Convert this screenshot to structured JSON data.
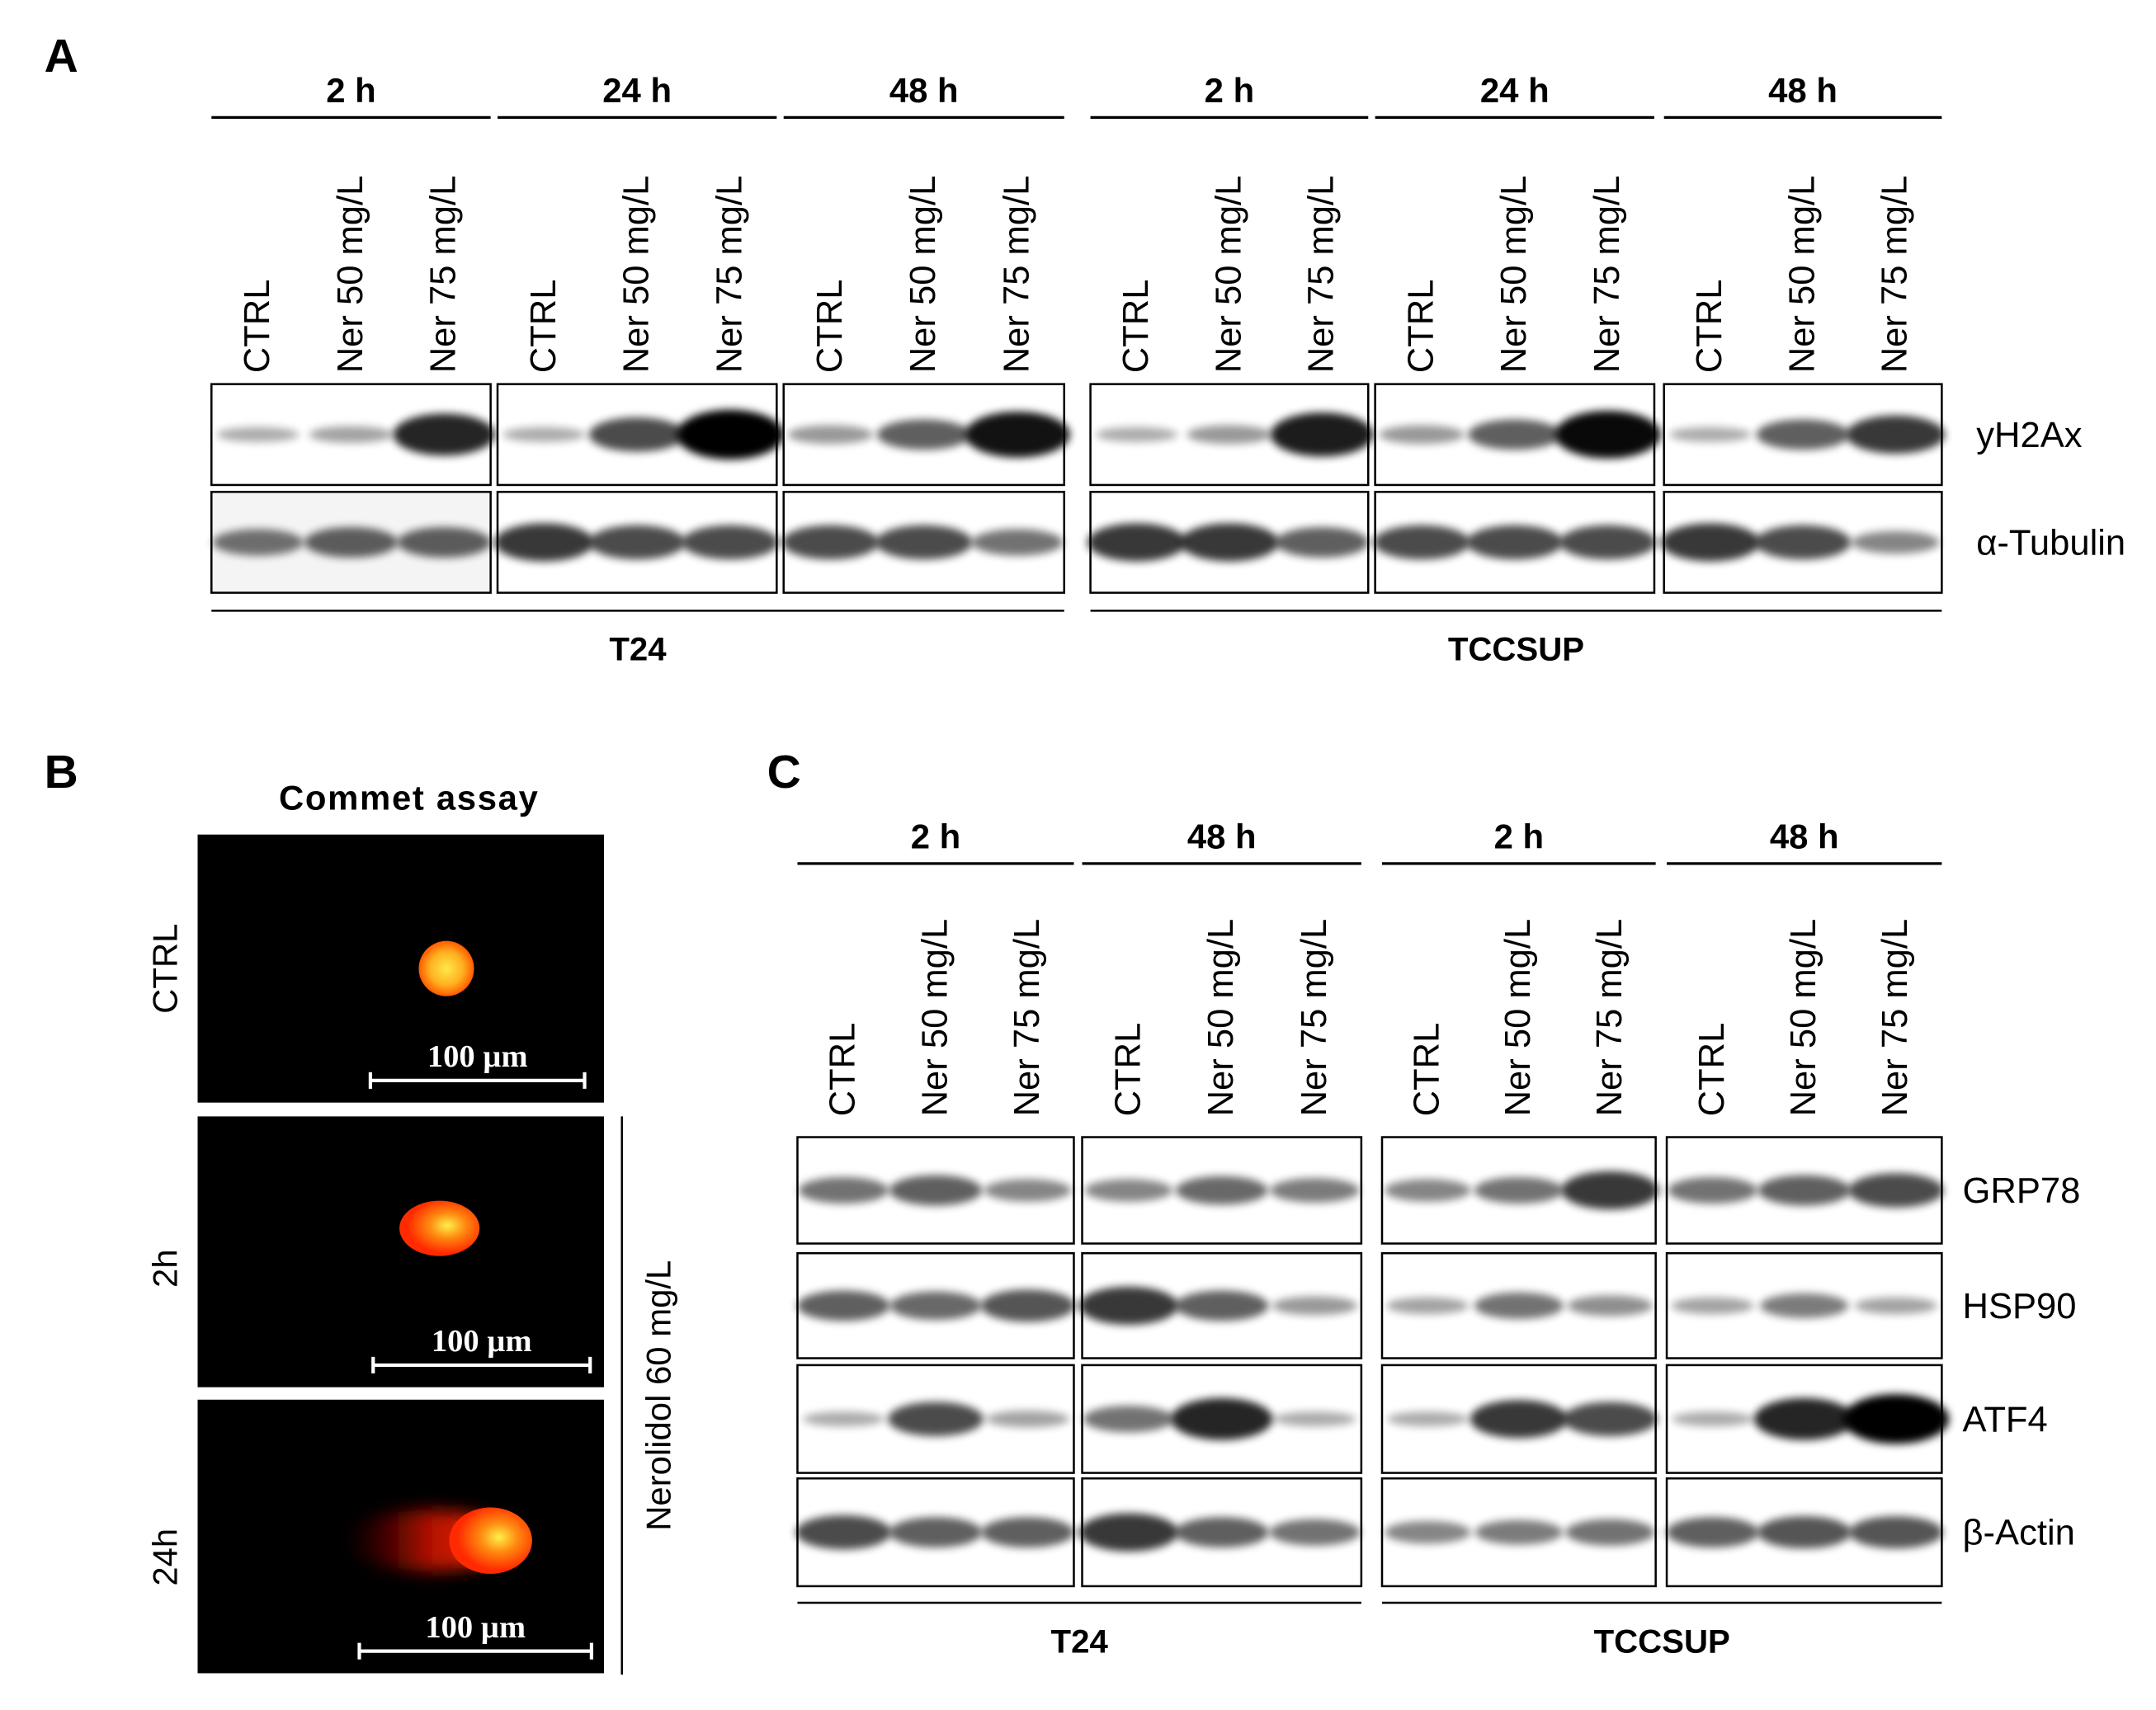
{
  "panel_a": {
    "label": "A",
    "timepoints": [
      "2 h",
      "24 h",
      "48 h",
      "2 h",
      "24 h",
      "48 h"
    ],
    "lanes": [
      "CTRL",
      "Ner 50 mg/L",
      "Ner 75 mg/L"
    ],
    "proteins": [
      "yH2Ax",
      "α-Tubulin"
    ],
    "cell_lines": [
      "T24",
      "TCCSUP"
    ]
  },
  "panel_b": {
    "label": "B",
    "title": "Commet assay",
    "rows": [
      "CTRL",
      "2h",
      "24h"
    ],
    "scale_bars": [
      "100 µm",
      "100 µm",
      "100 µm"
    ],
    "treatment": "Nerolidol 60 mg/L"
  },
  "panel_c": {
    "label": "C",
    "timepoints": [
      "2 h",
      "48 h",
      "2 h",
      "48 h"
    ],
    "lanes": [
      "CTRL",
      "Ner 50 mg/L",
      "Ner 75 mg/L"
    ],
    "proteins": [
      "GRP78",
      "HSP90",
      "ATF4",
      "β-Actin"
    ],
    "cell_lines": [
      "T24",
      "TCCSUP"
    ]
  }
}
